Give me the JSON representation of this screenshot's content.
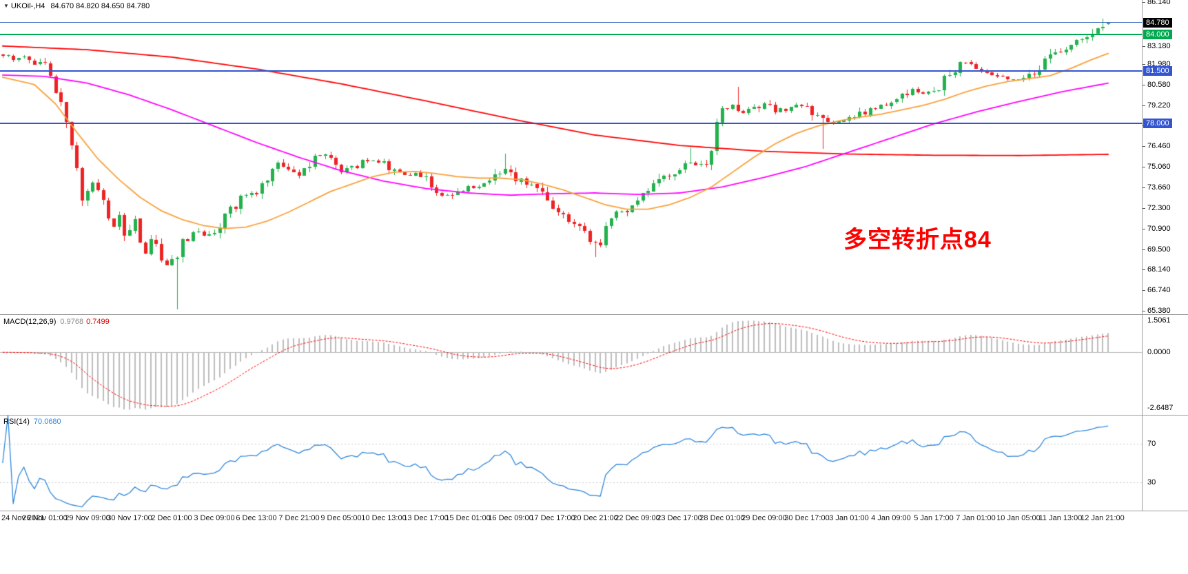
{
  "window": {
    "title_symbol": "UKOil-,H4",
    "title_ohlc": "84.670 84.820 84.650 84.780"
  },
  "main_panel": {
    "axis_labels": [
      "86.140",
      "83.180",
      "81.980",
      "80.580",
      "79.220",
      "77.860",
      "76.460",
      "75.060",
      "73.660",
      "72.300",
      "70.900",
      "69.500",
      "68.140",
      "66.740",
      "65.380"
    ],
    "badges": [
      {
        "text": "84.780",
        "price": 84.78,
        "color": "#000000"
      },
      {
        "text": "84.000",
        "price": 84.0,
        "color": "#00a94f"
      },
      {
        "text": "81.500",
        "price": 81.5,
        "color": "#3355d0"
      },
      {
        "text": "78.000",
        "price": 78.0,
        "color": "#3355d0"
      }
    ],
    "annotation": {
      "text": "多空转折点84",
      "color": "#ff0000",
      "slot": 159,
      "price": 71.45
    }
  },
  "macd_panel": {
    "name": "MACD(12,26,9)",
    "value_main": "0.9768",
    "value_signal": "0.7499",
    "axis_labels": [
      {
        "text": "1.5061",
        "value": 1.5061
      },
      {
        "text": "0.0000",
        "value": 0
      },
      {
        "text": "-2.6487",
        "value": -2.6487
      }
    ]
  },
  "rsi_panel": {
    "name": "RSI(14)",
    "value": "70.0680",
    "levels": [
      {
        "text": "70",
        "value": 70
      },
      {
        "text": "30",
        "value": 30
      }
    ]
  },
  "time_axis": {
    "labels": [
      "24 Nov 2021",
      "26 Nov 01:00",
      "29 Nov 09:00",
      "30 Nov 17:00",
      "2 Dec 01:00",
      "3 Dec 09:00",
      "6 Dec 13:00",
      "7 Dec 21:00",
      "9 Dec 05:00",
      "10 Dec 13:00",
      "13 Dec 17:00",
      "15 Dec 01:00",
      "16 Dec 09:00",
      "17 Dec 17:00",
      "20 Dec 21:00",
      "22 Dec 09:00",
      "23 Dec 17:00",
      "28 Dec 01:00",
      "29 Dec 09:00",
      "30 Dec 17:00",
      "3 Jan 01:00",
      "4 Jan 09:00",
      "5 Jan 17:00",
      "7 Jan 01:00",
      "10 Jan 05:00",
      "11 Jan 13:00",
      "12 Jan 21:00"
    ]
  },
  "chart_data": {
    "type": "candlestick",
    "symbol": "UKOil-",
    "timeframe": "H4",
    "last_bar": {
      "open": 84.67,
      "high": 84.82,
      "low": 84.65,
      "close": 84.78
    },
    "price_axis_range": [
      65.13,
      86.3
    ],
    "slots_total": 216,
    "bars": 210,
    "up_color": "#22b14c",
    "down_color": "#ee2222",
    "close_path": [
      [
        0,
        82.6
      ],
      [
        2,
        82.3
      ],
      [
        4,
        82.45
      ],
      [
        6,
        82.1
      ],
      [
        8,
        81.8
      ],
      [
        9,
        81.4
      ],
      [
        10,
        80.3
      ],
      [
        11,
        79.4
      ],
      [
        12,
        77.8
      ],
      [
        13,
        76.3
      ],
      [
        14,
        74.8
      ],
      [
        15,
        72.9
      ],
      [
        16,
        73.3
      ],
      [
        17,
        74.1
      ],
      [
        18,
        73.5
      ],
      [
        19,
        72.7
      ],
      [
        20,
        71.8
      ],
      [
        21,
        71.1
      ],
      [
        22,
        72.0
      ],
      [
        23,
        70.2
      ],
      [
        24,
        70.5
      ],
      [
        25,
        71.3
      ],
      [
        26,
        70.0
      ],
      [
        27,
        69.2
      ],
      [
        28,
        70.1
      ],
      [
        29,
        69.6
      ],
      [
        30,
        68.8
      ],
      [
        31,
        68.3
      ],
      [
        32,
        68.6
      ],
      [
        33,
        68.9
      ],
      [
        34,
        69.9
      ],
      [
        35,
        70.4
      ],
      [
        36,
        70.7
      ],
      [
        38,
        70.4
      ],
      [
        40,
        70.7
      ],
      [
        42,
        71.7
      ],
      [
        44,
        72.5
      ],
      [
        46,
        73.3
      ],
      [
        48,
        73.1
      ],
      [
        50,
        74.2
      ],
      [
        52,
        75.2
      ],
      [
        54,
        74.7
      ],
      [
        56,
        74.4
      ],
      [
        58,
        75.3
      ],
      [
        60,
        75.9
      ],
      [
        62,
        75.4
      ],
      [
        64,
        74.6
      ],
      [
        66,
        74.95
      ],
      [
        68,
        75.35
      ],
      [
        70,
        75.5
      ],
      [
        72,
        75.3
      ],
      [
        74,
        74.75
      ],
      [
        76,
        74.5
      ],
      [
        78,
        74.65
      ],
      [
        80,
        74.3
      ],
      [
        82,
        73.6
      ],
      [
        84,
        73.1
      ],
      [
        86,
        73.5
      ],
      [
        88,
        73.65
      ],
      [
        90,
        73.9
      ],
      [
        92,
        74.15
      ],
      [
        94,
        74.8
      ],
      [
        95,
        75.0
      ],
      [
        97,
        74.3
      ],
      [
        99,
        73.85
      ],
      [
        101,
        73.4
      ],
      [
        103,
        72.7
      ],
      [
        104,
        72.2
      ],
      [
        106,
        71.7
      ],
      [
        108,
        71.35
      ],
      [
        110,
        70.75
      ],
      [
        112,
        69.85
      ],
      [
        113,
        70.1
      ],
      [
        114,
        71.2
      ],
      [
        116,
        71.85
      ],
      [
        118,
        72.15
      ],
      [
        120,
        72.8
      ],
      [
        122,
        73.5
      ],
      [
        124,
        74.2
      ],
      [
        126,
        74.6
      ],
      [
        128,
        75.0
      ],
      [
        130,
        75.35
      ],
      [
        132,
        75.05
      ],
      [
        133,
        74.9
      ],
      [
        134,
        76.2
      ],
      [
        135,
        78.1
      ],
      [
        136,
        78.9
      ],
      [
        138,
        79.15
      ],
      [
        140,
        78.8
      ],
      [
        142,
        79.0
      ],
      [
        144,
        79.35
      ],
      [
        146,
        78.85
      ],
      [
        148,
        78.95
      ],
      [
        150,
        79.2
      ],
      [
        152,
        79.05
      ],
      [
        154,
        78.5
      ],
      [
        156,
        77.95
      ],
      [
        158,
        78.1
      ],
      [
        160,
        78.25
      ],
      [
        162,
        78.6
      ],
      [
        164,
        78.95
      ],
      [
        166,
        79.1
      ],
      [
        168,
        79.35
      ],
      [
        170,
        79.8
      ],
      [
        172,
        80.25
      ],
      [
        174,
        80.1
      ],
      [
        176,
        80.05
      ],
      [
        178,
        81.0
      ],
      [
        180,
        81.7
      ],
      [
        182,
        82.15
      ],
      [
        184,
        81.65
      ],
      [
        186,
        81.45
      ],
      [
        188,
        81.2
      ],
      [
        190,
        81.0
      ],
      [
        192,
        80.95
      ],
      [
        194,
        81.25
      ],
      [
        196,
        81.75
      ],
      [
        198,
        82.5
      ],
      [
        200,
        83.0
      ],
      [
        202,
        83.3
      ],
      [
        204,
        83.6
      ],
      [
        206,
        84.3
      ],
      [
        208,
        84.6
      ],
      [
        209,
        84.78
      ]
    ],
    "special_wicks": [
      {
        "slot": 33,
        "low": 65.45
      },
      {
        "slot": 95,
        "high": 75.95
      },
      {
        "slot": 112,
        "low": 68.95
      },
      {
        "slot": 130,
        "high": 76.35
      },
      {
        "slot": 139,
        "high": 80.45
      },
      {
        "slot": 155,
        "low": 76.25
      },
      {
        "slot": 208,
        "high": 85.05
      }
    ],
    "hlines": [
      {
        "label": "84.780",
        "price": 84.78,
        "color": "#4472c4",
        "width": 1,
        "object": false
      },
      {
        "label": "84.000",
        "price": 84.0,
        "color": "#00a94f",
        "width": 2,
        "object": true
      },
      {
        "label": "81.500",
        "price": 81.5,
        "color": "#3355d0",
        "width": 2,
        "object": true
      },
      {
        "label": "78.000",
        "price": 78.0,
        "color": "#3355d0",
        "width": 2,
        "object": true
      }
    ],
    "moving_averages": [
      {
        "name": "ma-slow-red",
        "color": "#ff0000",
        "points": [
          [
            0,
            83.2
          ],
          [
            16,
            82.95
          ],
          [
            32,
            82.45
          ],
          [
            48,
            81.65
          ],
          [
            64,
            80.65
          ],
          [
            80,
            79.5
          ],
          [
            96,
            78.3
          ],
          [
            112,
            77.2
          ],
          [
            128,
            76.5
          ],
          [
            144,
            76.1
          ],
          [
            160,
            75.92
          ],
          [
            176,
            75.84
          ],
          [
            192,
            75.82
          ],
          [
            209,
            75.9
          ]
        ]
      },
      {
        "name": "ma-mid-magenta",
        "color": "#ff00ff",
        "points": [
          [
            0,
            81.25
          ],
          [
            8,
            81.15
          ],
          [
            16,
            80.7
          ],
          [
            24,
            79.9
          ],
          [
            32,
            78.9
          ],
          [
            40,
            77.8
          ],
          [
            48,
            76.7
          ],
          [
            56,
            75.7
          ],
          [
            64,
            74.8
          ],
          [
            72,
            74.1
          ],
          [
            80,
            73.6
          ],
          [
            88,
            73.3
          ],
          [
            96,
            73.15
          ],
          [
            104,
            73.25
          ],
          [
            112,
            73.3
          ],
          [
            120,
            73.2
          ],
          [
            128,
            73.3
          ],
          [
            136,
            73.7
          ],
          [
            144,
            74.35
          ],
          [
            152,
            75.1
          ],
          [
            160,
            76.05
          ],
          [
            168,
            77.0
          ],
          [
            176,
            77.95
          ],
          [
            184,
            78.75
          ],
          [
            192,
            79.45
          ],
          [
            200,
            80.1
          ],
          [
            209,
            80.7
          ]
        ]
      },
      {
        "name": "ma-fast-orange",
        "color": "#f9a13a",
        "points": [
          [
            0,
            81.1
          ],
          [
            6,
            80.6
          ],
          [
            10,
            79.3
          ],
          [
            14,
            77.4
          ],
          [
            18,
            75.6
          ],
          [
            22,
            74.2
          ],
          [
            26,
            73.0
          ],
          [
            30,
            72.1
          ],
          [
            34,
            71.5
          ],
          [
            38,
            71.1
          ],
          [
            42,
            70.9
          ],
          [
            46,
            71.0
          ],
          [
            50,
            71.4
          ],
          [
            54,
            72.0
          ],
          [
            58,
            72.7
          ],
          [
            62,
            73.4
          ],
          [
            66,
            73.9
          ],
          [
            70,
            74.4
          ],
          [
            74,
            74.7
          ],
          [
            78,
            74.75
          ],
          [
            82,
            74.6
          ],
          [
            86,
            74.4
          ],
          [
            90,
            74.3
          ],
          [
            94,
            74.3
          ],
          [
            98,
            74.2
          ],
          [
            102,
            73.9
          ],
          [
            106,
            73.5
          ],
          [
            110,
            73.0
          ],
          [
            114,
            72.5
          ],
          [
            118,
            72.2
          ],
          [
            122,
            72.2
          ],
          [
            126,
            72.5
          ],
          [
            130,
            73.0
          ],
          [
            134,
            73.7
          ],
          [
            138,
            74.7
          ],
          [
            142,
            75.7
          ],
          [
            146,
            76.6
          ],
          [
            150,
            77.3
          ],
          [
            154,
            77.8
          ],
          [
            158,
            78.15
          ],
          [
            162,
            78.4
          ],
          [
            166,
            78.6
          ],
          [
            170,
            78.9
          ],
          [
            174,
            79.2
          ],
          [
            178,
            79.6
          ],
          [
            182,
            80.1
          ],
          [
            186,
            80.5
          ],
          [
            190,
            80.8
          ],
          [
            194,
            81.0
          ],
          [
            198,
            81.2
          ],
          [
            202,
            81.7
          ],
          [
            206,
            82.3
          ],
          [
            209,
            82.7
          ]
        ]
      }
    ],
    "indicators": [
      {
        "name": "MACD",
        "params": [
          12,
          26,
          9
        ],
        "style": "histogram+signal",
        "histogram_color": "#bdbdbd",
        "signal_color": "#ff0000"
      },
      {
        "name": "RSI",
        "params": [
          14
        ],
        "color": "#2e86de",
        "scale": [
          0,
          100
        ],
        "levels": [
          70,
          30
        ]
      }
    ]
  }
}
